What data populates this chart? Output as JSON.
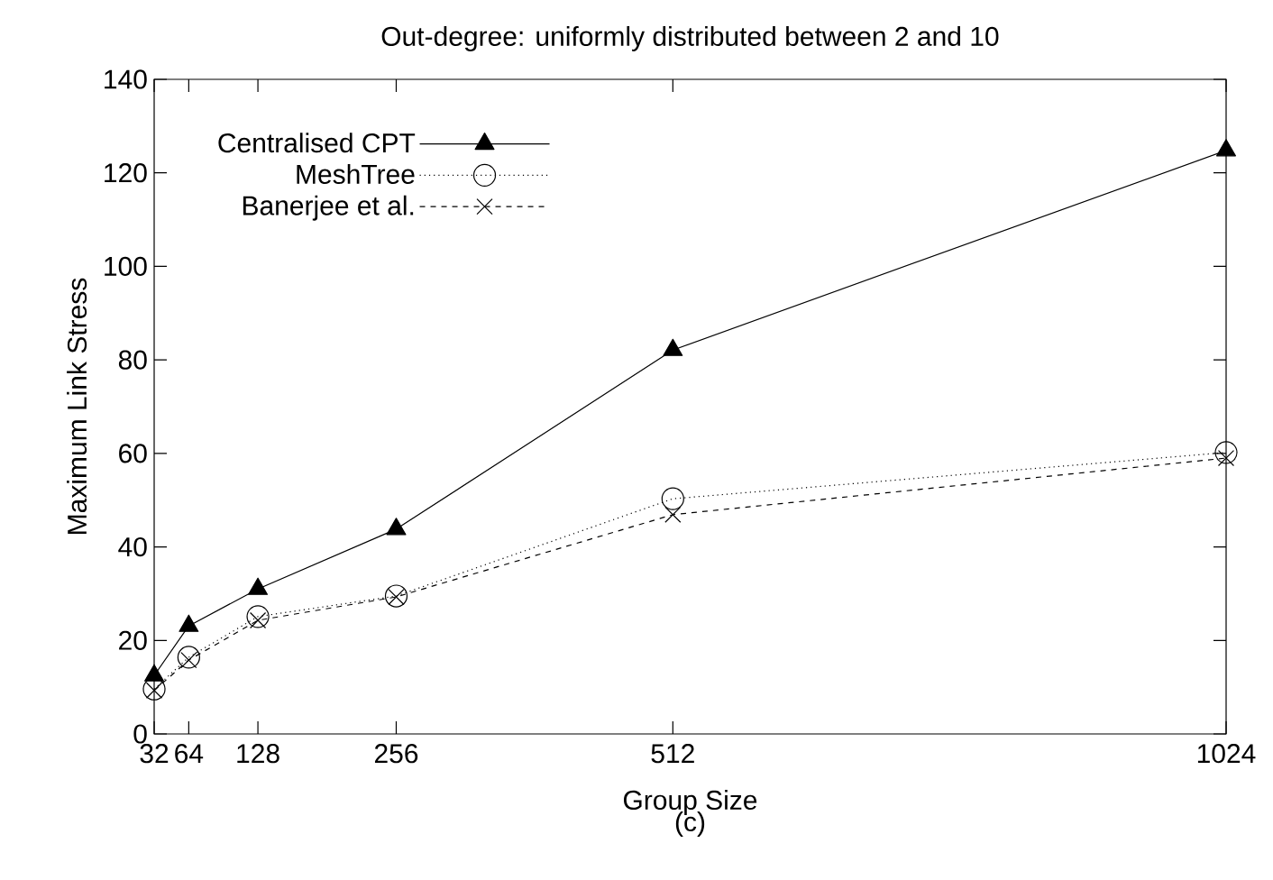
{
  "chart_data": {
    "type": "line",
    "title": "Out-degree: uniformly distributed between 2 and 10",
    "xlabel": "Group Size",
    "ylabel": "Maximum Link Stress",
    "annotations": [
      "(c)"
    ],
    "x": [
      32,
      64,
      128,
      256,
      512,
      1024
    ],
    "xlim": [
      32,
      1024
    ],
    "xticks": [
      32,
      64,
      128,
      256,
      512,
      1024
    ],
    "ylim": [
      0,
      140
    ],
    "yticks": [
      0,
      20,
      40,
      60,
      80,
      100,
      120,
      140
    ],
    "grid": false,
    "legend": "top left",
    "series": [
      {
        "name": "Centralised CPT",
        "color": "#000000",
        "marker": "triangle",
        "line_style": "solid",
        "values": [
          12.5,
          23.1,
          31.0,
          43.8,
          82.1,
          124.8
        ]
      },
      {
        "name": "MeshTree",
        "color": "#000000",
        "marker": "circle",
        "line_style": "dotted",
        "values": [
          9.6,
          16.4,
          25.1,
          29.5,
          50.3,
          60.2
        ]
      },
      {
        "name": "Banerjee et al.",
        "color": "#000000",
        "marker": "cross",
        "line_style": "dashed",
        "values": [
          9.3,
          15.8,
          24.3,
          29.3,
          46.9,
          59.0
        ]
      }
    ]
  }
}
